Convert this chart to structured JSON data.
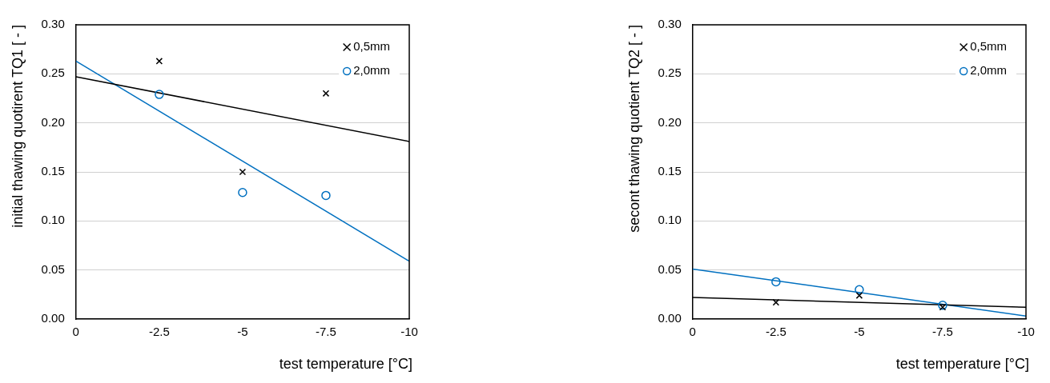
{
  "chart_data": [
    {
      "type": "scatter",
      "xlabel": "test temperature [°C]",
      "ylabel": "initial thawing quotirent TQ1 [ - ]",
      "xlim": [
        0,
        -10
      ],
      "xticks": [
        0,
        -2.5,
        -5,
        -7.5,
        -10
      ],
      "ylim": [
        0,
        0.3
      ],
      "yticks": [
        {
          "value": 0,
          "label": "0.00"
        },
        {
          "value": 0.05,
          "label": "0.05"
        },
        {
          "value": 0.1,
          "label": "0.10"
        },
        {
          "value": 0.15,
          "label": "0.15"
        },
        {
          "value": 0.2,
          "label": "0.20"
        },
        {
          "value": 0.25,
          "label": "0.25"
        },
        {
          "value": 0.3,
          "label": "0.30"
        }
      ],
      "grid": "y",
      "legend": "top right",
      "series": [
        {
          "name": "0,5mm",
          "color": "#000000",
          "marker": "cross",
          "x": [
            -2.5,
            -5,
            -7.5
          ],
          "values": [
            0.263,
            0.15,
            0.23
          ]
        },
        {
          "name": "2,0mm",
          "color": "#0070c0",
          "marker": "circle",
          "x": [
            -2.5,
            -5,
            -7.5
          ],
          "values": [
            0.229,
            0.129,
            0.126
          ]
        },
        {
          "type": "line",
          "color": "#000000",
          "marker": "none",
          "x": [
            0,
            -10
          ],
          "values": [
            0.247,
            0.181
          ]
        },
        {
          "type": "line",
          "color": "#0070c0",
          "marker": "none",
          "x": [
            0,
            -10
          ],
          "values": [
            0.263,
            0.059
          ]
        }
      ]
    },
    {
      "type": "scatter",
      "xlabel": "test temperature [°C]",
      "ylabel": "secont thawing quotient TQ2 [ - ]",
      "xlim": [
        0,
        -10
      ],
      "xticks": [
        0,
        -2.5,
        -5,
        -7.5,
        -10
      ],
      "ylim": [
        0,
        0.3
      ],
      "yticks": [
        {
          "value": 0,
          "label": "0.00"
        },
        {
          "value": 0.05,
          "label": "0.05"
        },
        {
          "value": 0.1,
          "label": "0.10"
        },
        {
          "value": 0.15,
          "label": "0.15"
        },
        {
          "value": 0.2,
          "label": "0.20"
        },
        {
          "value": 0.25,
          "label": "0.25"
        },
        {
          "value": 0.3,
          "label": "0.30"
        }
      ],
      "grid": "y",
      "legend": "top right",
      "series": [
        {
          "name": "0,5mm",
          "color": "#000000",
          "marker": "cross",
          "x": [
            -2.5,
            -5,
            -7.5
          ],
          "values": [
            0.017,
            0.024,
            0.012
          ]
        },
        {
          "name": "2,0mm",
          "color": "#0070c0",
          "marker": "circle",
          "x": [
            -2.5,
            -5,
            -7.5
          ],
          "values": [
            0.038,
            0.03,
            0.014
          ]
        },
        {
          "type": "line",
          "color": "#000000",
          "marker": "none",
          "x": [
            0,
            -10
          ],
          "values": [
            0.022,
            0.012
          ]
        },
        {
          "type": "line",
          "color": "#0070c0",
          "marker": "none",
          "x": [
            0,
            -10
          ],
          "values": [
            0.051,
            0.003
          ]
        }
      ]
    }
  ]
}
